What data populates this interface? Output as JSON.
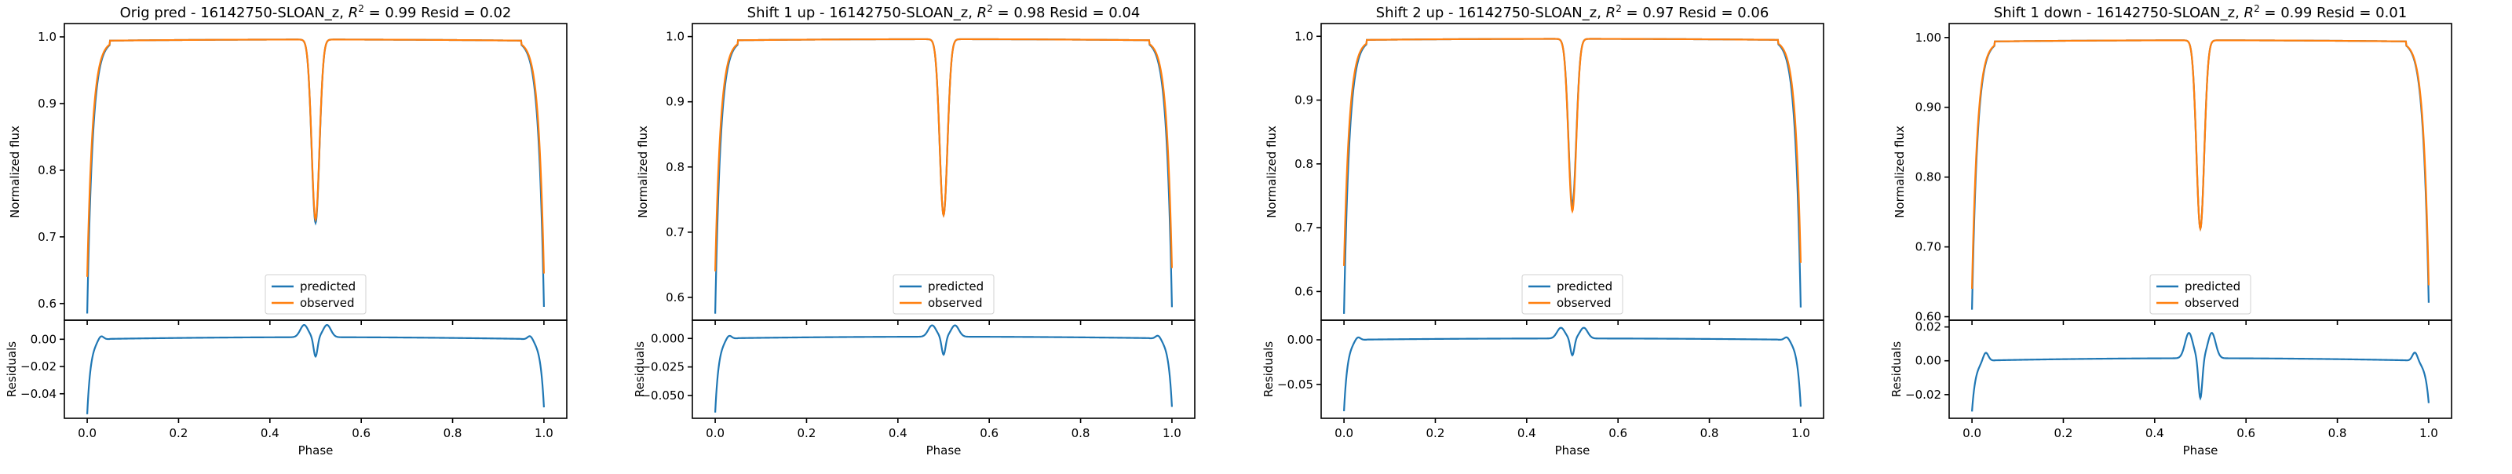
{
  "colors": {
    "predicted": "#1f77b4",
    "observed": "#ff7f0e"
  },
  "chart_data": [
    {
      "type": "line",
      "title": "Orig pred - 16142750-SLOAN_z, $R^2 = 0.99$ Resid = 0.02",
      "title_parts": {
        "before": "Orig pred - 16142750-SLOAN_z, ",
        "r2": "R",
        "sup": "2",
        "after": " = 0.99 Resid = 0.02"
      },
      "top": {
        "ylabel": "Normalized flux",
        "ylim": [
          0.575,
          1.02
        ],
        "yticks": [
          0.6,
          0.7,
          0.8,
          0.9,
          1.0
        ],
        "ytick_labels": [
          "0.6",
          "0.7",
          "0.8",
          "0.9",
          "1.0"
        ],
        "series": [
          {
            "name": "predicted",
            "eclipse_depth": 0.275,
            "edge_start": 0.585,
            "edge_end": 0.595
          },
          {
            "name": "observed",
            "eclipse_depth": 0.27,
            "edge_start": 0.64,
            "edge_end": 0.645
          }
        ],
        "legend": [
          "predicted",
          "observed"
        ],
        "legend_loc": "lower center"
      },
      "bottom": {
        "ylabel": "Residuals",
        "ylim": [
          -0.058,
          0.014
        ],
        "yticks": [
          0.0,
          -0.02,
          -0.04
        ],
        "ytick_labels": [
          "0.00",
          "−0.02",
          "−0.04"
        ],
        "residual": {
          "baseline": 0.0,
          "bump": 0.009,
          "edge_start": -0.055,
          "edge_end": -0.05
        }
      },
      "xlabel": "Phase",
      "xlim": [
        -0.05,
        1.05
      ],
      "xticks": [
        0.0,
        0.2,
        0.4,
        0.6,
        0.8,
        1.0
      ],
      "xtick_labels": [
        "0.0",
        "0.2",
        "0.4",
        "0.6",
        "0.8",
        "1.0"
      ]
    },
    {
      "type": "line",
      "title": "Shift 1 up - 16142750-SLOAN_z, $R^2 = 0.98$ Resid = 0.04",
      "title_parts": {
        "before": "Shift 1 up - 16142750-SLOAN_z, ",
        "r2": "R",
        "sup": "2",
        "after": " = 0.98 Resid = 0.04"
      },
      "top": {
        "ylabel": "Normalized flux",
        "ylim": [
          0.565,
          1.02
        ],
        "yticks": [
          0.6,
          0.7,
          0.8,
          0.9,
          1.0
        ],
        "ytick_labels": [
          "0.6",
          "0.7",
          "0.8",
          "0.9",
          "1.0"
        ],
        "series": [
          {
            "name": "predicted",
            "eclipse_depth": 0.27,
            "edge_start": 0.575,
            "edge_end": 0.585
          },
          {
            "name": "observed",
            "eclipse_depth": 0.27,
            "edge_start": 0.64,
            "edge_end": 0.645
          }
        ],
        "legend": [
          "predicted",
          "observed"
        ],
        "legend_loc": "lower center"
      },
      "bottom": {
        "ylabel": "Residuals",
        "ylim": [
          -0.07,
          0.016
        ],
        "yticks": [
          0.0,
          -0.025,
          -0.05
        ],
        "ytick_labels": [
          "0.000",
          "−0.025",
          "−0.050"
        ],
        "residual": {
          "baseline": 0.0,
          "bump": 0.01,
          "edge_start": -0.065,
          "edge_end": -0.06
        }
      },
      "xlabel": "Phase",
      "xlim": [
        -0.05,
        1.05
      ],
      "xticks": [
        0.0,
        0.2,
        0.4,
        0.6,
        0.8,
        1.0
      ],
      "xtick_labels": [
        "0.0",
        "0.2",
        "0.4",
        "0.6",
        "0.8",
        "1.0"
      ]
    },
    {
      "type": "line",
      "title": "Shift 2 up - 16142750-SLOAN_z, $R^2 = 0.97$ Resid = 0.06",
      "title_parts": {
        "before": "Shift 2 up - 16142750-SLOAN_z, ",
        "r2": "R",
        "sup": "2",
        "after": " = 0.97 Resid = 0.06"
      },
      "top": {
        "ylabel": "Normalized flux",
        "ylim": [
          0.555,
          1.02
        ],
        "yticks": [
          0.6,
          0.7,
          0.8,
          0.9,
          1.0
        ],
        "ytick_labels": [
          "0.6",
          "0.7",
          "0.8",
          "0.9",
          "1.0"
        ],
        "series": [
          {
            "name": "predicted",
            "eclipse_depth": 0.26,
            "edge_start": 0.565,
            "edge_end": 0.575
          },
          {
            "name": "observed",
            "eclipse_depth": 0.27,
            "edge_start": 0.64,
            "edge_end": 0.645
          }
        ],
        "legend": [
          "predicted",
          "observed"
        ],
        "legend_loc": "lower center"
      },
      "bottom": {
        "ylabel": "Residuals",
        "ylim": [
          -0.088,
          0.022
        ],
        "yticks": [
          0.0,
          -0.05
        ],
        "ytick_labels": [
          "0.00",
          "−0.05"
        ],
        "residual": {
          "baseline": 0.0,
          "bump": 0.012,
          "edge_start": -0.08,
          "edge_end": -0.075
        }
      },
      "xlabel": "Phase",
      "xlim": [
        -0.05,
        1.05
      ],
      "xticks": [
        0.0,
        0.2,
        0.4,
        0.6,
        0.8,
        1.0
      ],
      "xtick_labels": [
        "0.0",
        "0.2",
        "0.4",
        "0.6",
        "0.8",
        "1.0"
      ]
    },
    {
      "type": "line",
      "title": "Shift 1 down - 16142750-SLOAN_z, $R^2 = 0.99$ Resid = 0.01",
      "title_parts": {
        "before": "Shift 1 down - 16142750-SLOAN_z, ",
        "r2": "R",
        "sup": "2",
        "after": " = 0.99 Resid = 0.01"
      },
      "top": {
        "ylabel": "Normalized flux",
        "ylim": [
          0.595,
          1.02
        ],
        "yticks": [
          0.6,
          0.7,
          0.8,
          0.9,
          1.0
        ],
        "ytick_labels": [
          "0.60",
          "0.70",
          "0.80",
          "0.90",
          "1.00"
        ],
        "series": [
          {
            "name": "predicted",
            "eclipse_depth": 0.27,
            "edge_start": 0.61,
            "edge_end": 0.62
          },
          {
            "name": "observed",
            "eclipse_depth": 0.27,
            "edge_start": 0.64,
            "edge_end": 0.645
          }
        ],
        "legend": [
          "predicted",
          "observed"
        ],
        "legend_loc": "lower center"
      },
      "bottom": {
        "ylabel": "Residuals",
        "ylim": [
          -0.034,
          0.024
        ],
        "yticks": [
          0.02,
          0.0,
          -0.02
        ],
        "ytick_labels": [
          "0.02",
          "0.00",
          "−0.02"
        ],
        "residual": {
          "baseline": 0.0,
          "bump": 0.015,
          "edge_start": -0.03,
          "edge_end": -0.025
        }
      },
      "xlabel": "Phase",
      "xlim": [
        -0.05,
        1.05
      ],
      "xticks": [
        0.0,
        0.2,
        0.4,
        0.6,
        0.8,
        1.0
      ],
      "xtick_labels": [
        "0.0",
        "0.2",
        "0.4",
        "0.6",
        "0.8",
        "1.0"
      ]
    }
  ]
}
